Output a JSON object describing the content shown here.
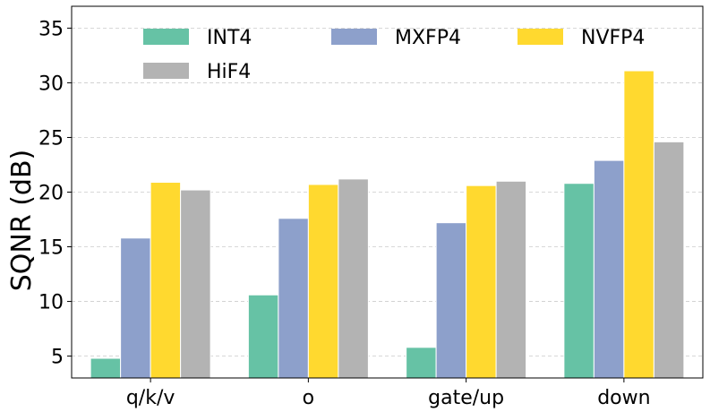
{
  "chart_data": {
    "type": "bar",
    "title": "",
    "xlabel": "",
    "ylabel": "SQNR (dB)",
    "ylim": [
      3,
      37
    ],
    "yticks": [
      5,
      10,
      15,
      20,
      25,
      30,
      35
    ],
    "grid": true,
    "legend_position": "top",
    "categories": [
      "q/k/v",
      "o",
      "gate/up",
      "down"
    ],
    "series": [
      {
        "name": "INT4",
        "color": "#66c2a5",
        "values": [
          4.8,
          10.6,
          5.8,
          20.8
        ]
      },
      {
        "name": "MXFP4",
        "color": "#8da0cb",
        "values": [
          15.8,
          17.6,
          17.2,
          22.9
        ]
      },
      {
        "name": "NVFP4",
        "color": "#ffd92f",
        "values": [
          20.9,
          20.7,
          20.6,
          31.1
        ]
      },
      {
        "name": "HiF4",
        "color": "#b3b3b3",
        "values": [
          20.2,
          21.2,
          21.0,
          24.6
        ]
      }
    ]
  }
}
